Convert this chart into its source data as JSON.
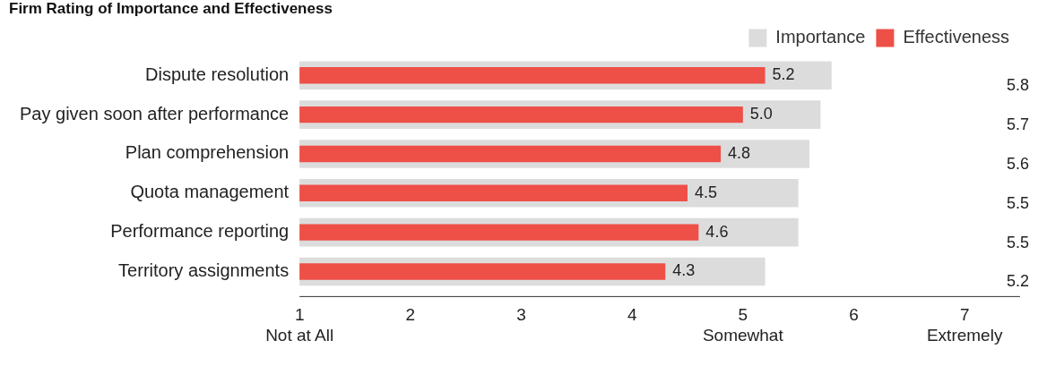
{
  "chart_data": {
    "type": "bar",
    "orientation": "horizontal",
    "title": "Firm Rating of Importance and Effectiveness",
    "categories": [
      "Dispute resolution",
      "Pay given soon after performance",
      "Plan comprehension",
      "Quota management",
      "Performance reporting",
      "Territory assignments"
    ],
    "series": [
      {
        "name": "Importance",
        "color": "#dcdcdd",
        "values": [
          5.8,
          5.7,
          5.6,
          5.5,
          5.5,
          5.2
        ],
        "value_labels": [
          "5.8",
          "5.7",
          "5.6",
          "5.5",
          "5.5",
          "5.2"
        ]
      },
      {
        "name": "Effectiveness",
        "color": "#ee4f47",
        "values": [
          5.2,
          5.0,
          4.8,
          4.5,
          4.6,
          4.3
        ],
        "value_labels": [
          "5.2",
          "5.0",
          "4.8",
          "4.5",
          "4.6",
          "4.3"
        ]
      }
    ],
    "xlim": [
      1,
      7.5
    ],
    "xticks": [
      {
        "value": 1,
        "label": "1\nNot at All"
      },
      2,
      3,
      4,
      {
        "value": 5,
        "label": "5\nSomewhat"
      },
      6,
      {
        "value": 7,
        "label": "7\nExtremely"
      }
    ],
    "legend": "top right",
    "grid": false
  }
}
